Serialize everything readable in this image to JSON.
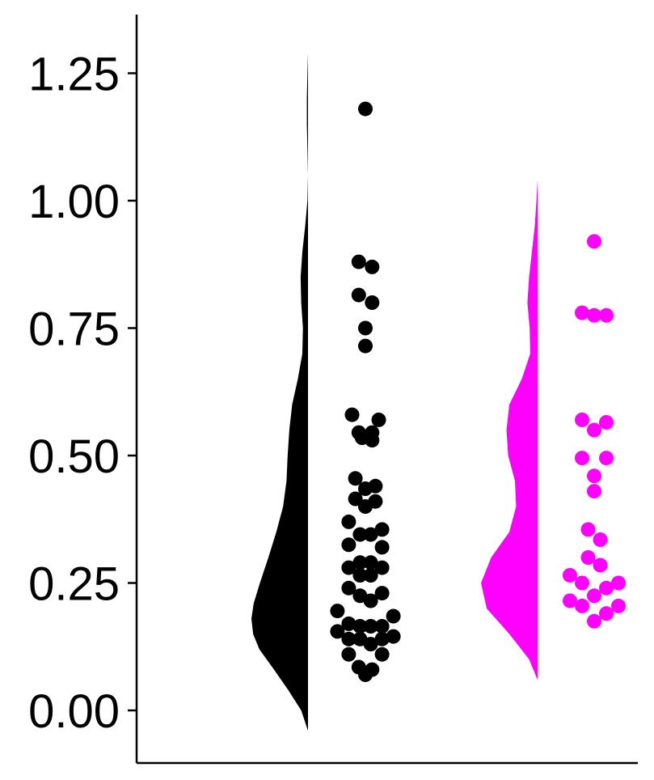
{
  "chart_data": {
    "type": "raincloud",
    "ylim": [
      -0.1,
      1.35
    ],
    "yticks": [
      0.0,
      0.25,
      0.5,
      0.75,
      1.0,
      1.25
    ],
    "ytick_labels": [
      "0.00",
      "0.25",
      "0.50",
      "0.75",
      "1.00",
      "1.25"
    ],
    "legend": "none",
    "grid": false,
    "series": [
      {
        "color": "#000000",
        "density_range": [
          -0.04,
          1.29
        ],
        "density": [
          [
            -0.04,
            0.0
          ],
          [
            0.0,
            0.12
          ],
          [
            0.04,
            0.35
          ],
          [
            0.08,
            0.6
          ],
          [
            0.12,
            0.86
          ],
          [
            0.15,
            0.97
          ],
          [
            0.18,
            1.0
          ],
          [
            0.21,
            0.96
          ],
          [
            0.25,
            0.85
          ],
          [
            0.3,
            0.7
          ],
          [
            0.35,
            0.56
          ],
          [
            0.4,
            0.44
          ],
          [
            0.45,
            0.38
          ],
          [
            0.5,
            0.36
          ],
          [
            0.55,
            0.33
          ],
          [
            0.6,
            0.28
          ],
          [
            0.65,
            0.18
          ],
          [
            0.7,
            0.1
          ],
          [
            0.75,
            0.09
          ],
          [
            0.8,
            0.12
          ],
          [
            0.85,
            0.13
          ],
          [
            0.9,
            0.1
          ],
          [
            0.95,
            0.05
          ],
          [
            1.0,
            0.01
          ],
          [
            1.05,
            0.0
          ],
          [
            1.1,
            0.01
          ],
          [
            1.15,
            0.02
          ],
          [
            1.2,
            0.02
          ],
          [
            1.25,
            0.01
          ],
          [
            1.29,
            0.0
          ]
        ],
        "points": [
          {
            "y": 1.18,
            "dx": 0
          },
          {
            "y": 0.88,
            "dx": -0.5
          },
          {
            "y": 0.87,
            "dx": 0.5
          },
          {
            "y": 0.815,
            "dx": -0.5
          },
          {
            "y": 0.8,
            "dx": 0.5
          },
          {
            "y": 0.75,
            "dx": 0
          },
          {
            "y": 0.715,
            "dx": 0
          },
          {
            "y": 0.58,
            "dx": -1
          },
          {
            "y": 0.57,
            "dx": 1
          },
          {
            "y": 0.545,
            "dx": -0.5
          },
          {
            "y": 0.545,
            "dx": 0.5
          },
          {
            "y": 0.535,
            "dx": -0.25
          },
          {
            "y": 0.53,
            "dx": 0.5
          },
          {
            "y": 0.455,
            "dx": -0.75
          },
          {
            "y": 0.44,
            "dx": 0.75
          },
          {
            "y": 0.435,
            "dx": 0
          },
          {
            "y": 0.415,
            "dx": -0.75
          },
          {
            "y": 0.41,
            "dx": 0.75
          },
          {
            "y": 0.4,
            "dx": 0
          },
          {
            "y": 0.37,
            "dx": -1.25
          },
          {
            "y": 0.355,
            "dx": 1.25
          },
          {
            "y": 0.345,
            "dx": -0.4
          },
          {
            "y": 0.345,
            "dx": 0.4
          },
          {
            "y": 0.325,
            "dx": -1.25
          },
          {
            "y": 0.32,
            "dx": 1.25
          },
          {
            "y": 0.29,
            "dx": -0.4
          },
          {
            "y": 0.29,
            "dx": 0.4
          },
          {
            "y": 0.28,
            "dx": -1.25
          },
          {
            "y": 0.28,
            "dx": 1.25
          },
          {
            "y": 0.265,
            "dx": -0.4
          },
          {
            "y": 0.265,
            "dx": 0.4
          },
          {
            "y": 0.24,
            "dx": -1.25
          },
          {
            "y": 0.23,
            "dx": 1.25
          },
          {
            "y": 0.225,
            "dx": -0.4
          },
          {
            "y": 0.215,
            "dx": 0.4
          },
          {
            "y": 0.195,
            "dx": -2.1
          },
          {
            "y": 0.185,
            "dx": 2.1
          },
          {
            "y": 0.17,
            "dx": -1.25
          },
          {
            "y": 0.165,
            "dx": -0.4
          },
          {
            "y": 0.165,
            "dx": 0.4
          },
          {
            "y": 0.165,
            "dx": 1.25
          },
          {
            "y": 0.155,
            "dx": -2.1
          },
          {
            "y": 0.145,
            "dx": 2.1
          },
          {
            "y": 0.14,
            "dx": -1.25
          },
          {
            "y": 0.14,
            "dx": -0.4
          },
          {
            "y": 0.14,
            "dx": 1.25
          },
          {
            "y": 0.13,
            "dx": 0.4
          },
          {
            "y": 0.11,
            "dx": -1.25
          },
          {
            "y": 0.11,
            "dx": 1.25
          },
          {
            "y": 0.085,
            "dx": -0.5
          },
          {
            "y": 0.08,
            "dx": 0.5
          },
          {
            "y": 0.07,
            "dx": 0
          }
        ]
      },
      {
        "color": "#ff00ff",
        "density_range": [
          0.06,
          1.04
        ],
        "density": [
          [
            0.06,
            0.0
          ],
          [
            0.1,
            0.15
          ],
          [
            0.15,
            0.5
          ],
          [
            0.2,
            0.9
          ],
          [
            0.25,
            1.0
          ],
          [
            0.3,
            0.82
          ],
          [
            0.35,
            0.5
          ],
          [
            0.4,
            0.38
          ],
          [
            0.45,
            0.4
          ],
          [
            0.5,
            0.52
          ],
          [
            0.55,
            0.55
          ],
          [
            0.6,
            0.5
          ],
          [
            0.65,
            0.28
          ],
          [
            0.7,
            0.13
          ],
          [
            0.75,
            0.14
          ],
          [
            0.8,
            0.18
          ],
          [
            0.85,
            0.15
          ],
          [
            0.9,
            0.1
          ],
          [
            0.95,
            0.05
          ],
          [
            1.0,
            0.02
          ],
          [
            1.04,
            0.0
          ]
        ],
        "points": [
          {
            "y": 0.92,
            "dx": 0
          },
          {
            "y": 0.78,
            "dx": -1
          },
          {
            "y": 0.775,
            "dx": 0
          },
          {
            "y": 0.775,
            "dx": 1
          },
          {
            "y": 0.57,
            "dx": -1
          },
          {
            "y": 0.565,
            "dx": 1
          },
          {
            "y": 0.55,
            "dx": 0
          },
          {
            "y": 0.495,
            "dx": -1
          },
          {
            "y": 0.495,
            "dx": 1
          },
          {
            "y": 0.46,
            "dx": 0
          },
          {
            "y": 0.43,
            "dx": 0
          },
          {
            "y": 0.355,
            "dx": -0.5
          },
          {
            "y": 0.335,
            "dx": 0.5
          },
          {
            "y": 0.3,
            "dx": -0.5
          },
          {
            "y": 0.285,
            "dx": 0.5
          },
          {
            "y": 0.265,
            "dx": -2
          },
          {
            "y": 0.25,
            "dx": 2
          },
          {
            "y": 0.25,
            "dx": -1
          },
          {
            "y": 0.24,
            "dx": 1
          },
          {
            "y": 0.225,
            "dx": 0
          },
          {
            "y": 0.215,
            "dx": -2
          },
          {
            "y": 0.205,
            "dx": -1
          },
          {
            "y": 0.205,
            "dx": 2
          },
          {
            "y": 0.19,
            "dx": 1
          },
          {
            "y": 0.175,
            "dx": 0
          }
        ]
      }
    ]
  }
}
